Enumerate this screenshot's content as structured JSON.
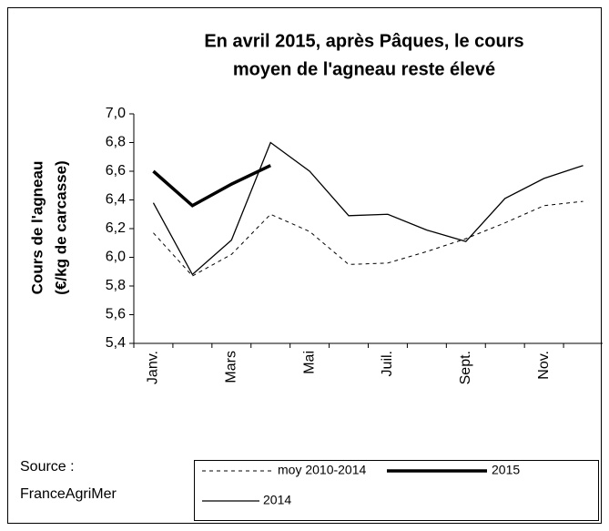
{
  "chart_data": {
    "type": "line",
    "title": [
      "En avril 2015, après Pâques,  le cours",
      "moyen de l'agneau reste élevé"
    ],
    "y_label": [
      "Cours de l'agneau",
      "(€/kg de carcasse)"
    ],
    "source": [
      "Source :",
      "FranceAgriMer"
    ],
    "categories": [
      "Janv.",
      null,
      "Mars",
      null,
      "Mai",
      null,
      "Juil.",
      null,
      "Sept.",
      null,
      "Nov.",
      null
    ],
    "series": [
      {
        "name": "moy 2010-2014",
        "color": "#000000",
        "dash": true,
        "width": 1,
        "values": [
          6.17,
          5.87,
          6.02,
          6.3,
          6.18,
          5.95,
          5.96,
          6.04,
          6.13,
          6.24,
          6.36,
          6.39
        ]
      },
      {
        "name": "2015",
        "color": "#000000",
        "dash": false,
        "width": 3.5,
        "values": [
          6.6,
          6.36,
          6.51,
          6.64,
          null,
          null,
          null,
          null,
          null,
          null,
          null,
          null
        ]
      },
      {
        "name": "2014",
        "color": "#000000",
        "dash": false,
        "width": 1.3,
        "values": [
          6.38,
          5.88,
          6.12,
          6.8,
          6.6,
          6.29,
          6.3,
          6.19,
          6.11,
          6.41,
          6.55,
          6.64
        ]
      }
    ],
    "ylim": [
      5.4,
      7.0
    ],
    "yticks": [
      {
        "value": 5.4,
        "label": "5,4"
      },
      {
        "value": 5.6,
        "label": "5,6"
      },
      {
        "value": 5.8,
        "label": "5,8"
      },
      {
        "value": 6.0,
        "label": "6,0"
      },
      {
        "value": 6.2,
        "label": "6,2"
      },
      {
        "value": 6.4,
        "label": "6,4"
      },
      {
        "value": 6.6,
        "label": "6,6"
      },
      {
        "value": 6.8,
        "label": "6,8"
      },
      {
        "value": 7.0,
        "label": "7,0"
      }
    ],
    "grid": false
  }
}
